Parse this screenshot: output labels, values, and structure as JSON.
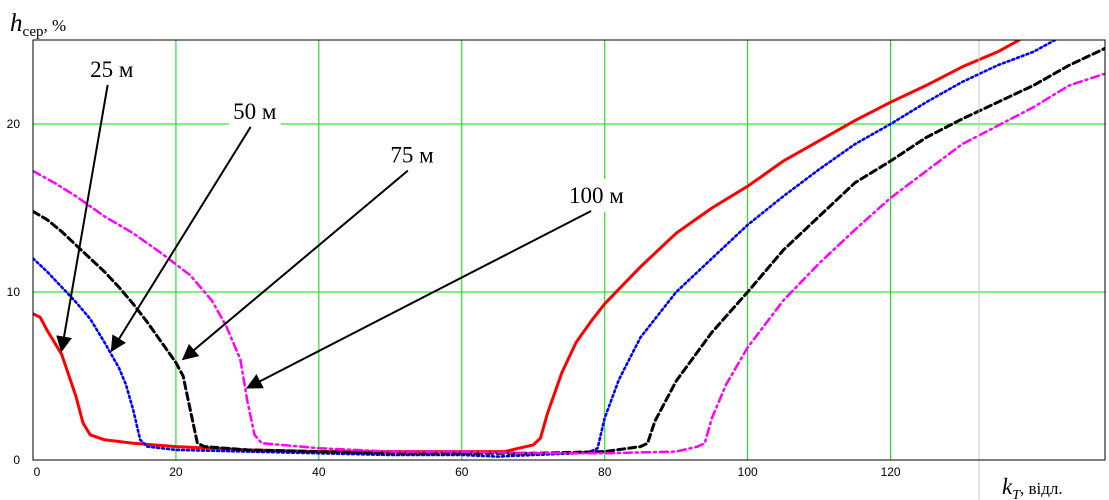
{
  "chart_data": {
    "type": "line",
    "xlabel": {
      "symbol": "k",
      "subscript": "T",
      "suffix": ", відл."
    },
    "ylabel": {
      "symbol": "h",
      "subscript": "сер",
      "suffix": ", %"
    },
    "xlim": [
      0,
      150
    ],
    "ylim": [
      0,
      25
    ],
    "x_ticks": [
      0,
      20,
      40,
      60,
      80,
      100,
      120
    ],
    "y_ticks": [
      0,
      10,
      20
    ],
    "grid": true,
    "colors": {
      "grid": "#00dd00",
      "s25": "#ff0000",
      "s50": "#0000ff",
      "s75": "#000000",
      "s100": "#ff00ff"
    },
    "series": [
      {
        "key": "s25",
        "style": "solid",
        "points": [
          [
            0,
            8.7
          ],
          [
            1,
            8.5
          ],
          [
            2,
            7.7
          ],
          [
            4,
            6.3
          ],
          [
            6,
            3.8
          ],
          [
            7,
            2.2
          ],
          [
            8,
            1.5
          ],
          [
            10,
            1.2
          ],
          [
            14,
            1.0
          ],
          [
            20,
            0.8
          ],
          [
            30,
            0.6
          ],
          [
            40,
            0.5
          ],
          [
            50,
            0.5
          ],
          [
            60,
            0.5
          ],
          [
            66,
            0.5
          ],
          [
            68,
            0.7
          ],
          [
            70,
            0.9
          ],
          [
            71,
            1.3
          ],
          [
            72,
            2.8
          ],
          [
            74,
            5.2
          ],
          [
            76,
            7.0
          ],
          [
            78,
            8.2
          ],
          [
            80,
            9.3
          ],
          [
            85,
            11.5
          ],
          [
            90,
            13.5
          ],
          [
            95,
            15.0
          ],
          [
            100,
            16.3
          ],
          [
            105,
            17.8
          ],
          [
            110,
            19.0
          ],
          [
            115,
            20.2
          ],
          [
            120,
            21.3
          ],
          [
            125,
            22.3
          ],
          [
            130,
            23.4
          ],
          [
            135,
            24.3
          ],
          [
            138,
            25.0
          ]
        ]
      },
      {
        "key": "s50",
        "style": "dotted",
        "points": [
          [
            0,
            12.0
          ],
          [
            2,
            11.2
          ],
          [
            4,
            10.3
          ],
          [
            6,
            9.4
          ],
          [
            8,
            8.4
          ],
          [
            10,
            7.0
          ],
          [
            12,
            5.5
          ],
          [
            13,
            4.5
          ],
          [
            14,
            3.0
          ],
          [
            15,
            1.2
          ],
          [
            16,
            0.8
          ],
          [
            20,
            0.6
          ],
          [
            30,
            0.5
          ],
          [
            40,
            0.4
          ],
          [
            50,
            0.3
          ],
          [
            60,
            0.3
          ],
          [
            65,
            0.2
          ],
          [
            70,
            0.3
          ],
          [
            76,
            0.4
          ],
          [
            78,
            0.5
          ],
          [
            79,
            0.7
          ],
          [
            80,
            2.5
          ],
          [
            82,
            4.8
          ],
          [
            85,
            7.3
          ],
          [
            90,
            10.0
          ],
          [
            95,
            12.0
          ],
          [
            100,
            14.0
          ],
          [
            105,
            15.7
          ],
          [
            110,
            17.3
          ],
          [
            115,
            18.8
          ],
          [
            120,
            20.0
          ],
          [
            125,
            21.3
          ],
          [
            130,
            22.5
          ],
          [
            135,
            23.5
          ],
          [
            140,
            24.3
          ],
          [
            143,
            25.0
          ]
        ]
      },
      {
        "key": "s75",
        "style": "dashed",
        "points": [
          [
            0,
            14.8
          ],
          [
            2,
            14.3
          ],
          [
            4,
            13.6
          ],
          [
            6,
            12.8
          ],
          [
            8,
            12.0
          ],
          [
            10,
            11.2
          ],
          [
            12,
            10.3
          ],
          [
            14,
            9.3
          ],
          [
            16,
            8.2
          ],
          [
            18,
            7.0
          ],
          [
            20,
            5.8
          ],
          [
            21,
            5.0
          ],
          [
            22,
            3.0
          ],
          [
            23,
            1.0
          ],
          [
            24,
            0.8
          ],
          [
            30,
            0.6
          ],
          [
            40,
            0.5
          ],
          [
            50,
            0.4
          ],
          [
            60,
            0.4
          ],
          [
            70,
            0.4
          ],
          [
            80,
            0.5
          ],
          [
            85,
            0.8
          ],
          [
            86,
            1.0
          ],
          [
            87,
            2.3
          ],
          [
            90,
            4.7
          ],
          [
            95,
            7.6
          ],
          [
            100,
            10.0
          ],
          [
            105,
            12.5
          ],
          [
            110,
            14.5
          ],
          [
            115,
            16.5
          ],
          [
            120,
            17.8
          ],
          [
            125,
            19.2
          ],
          [
            130,
            20.3
          ],
          [
            135,
            21.3
          ],
          [
            140,
            22.3
          ],
          [
            145,
            23.5
          ],
          [
            150,
            24.5
          ]
        ]
      },
      {
        "key": "s100",
        "style": "dashdot",
        "points": [
          [
            0,
            17.2
          ],
          [
            3,
            16.5
          ],
          [
            6,
            15.7
          ],
          [
            10,
            14.5
          ],
          [
            14,
            13.5
          ],
          [
            18,
            12.3
          ],
          [
            22,
            11.0
          ],
          [
            25,
            9.5
          ],
          [
            27,
            8.0
          ],
          [
            29,
            6.0
          ],
          [
            30,
            3.5
          ],
          [
            31,
            1.5
          ],
          [
            32,
            1.0
          ],
          [
            40,
            0.7
          ],
          [
            50,
            0.5
          ],
          [
            60,
            0.5
          ],
          [
            70,
            0.4
          ],
          [
            80,
            0.4
          ],
          [
            90,
            0.5
          ],
          [
            93,
            0.8
          ],
          [
            94,
            1.0
          ],
          [
            95,
            2.5
          ],
          [
            97,
            4.5
          ],
          [
            100,
            6.7
          ],
          [
            105,
            9.5
          ],
          [
            110,
            11.7
          ],
          [
            115,
            13.7
          ],
          [
            120,
            15.6
          ],
          [
            125,
            17.2
          ],
          [
            130,
            18.8
          ],
          [
            135,
            19.9
          ],
          [
            140,
            21.0
          ],
          [
            145,
            22.3
          ],
          [
            150,
            23.0
          ]
        ]
      }
    ],
    "annotations": [
      {
        "text": "25 м",
        "x_pos": 8,
        "y_pos": 22.8,
        "arrow_to": [
          4,
          6.5
        ]
      },
      {
        "text": "50 м",
        "x_pos": 28,
        "y_pos": 20.3,
        "arrow_to": [
          11,
          6.5
        ]
      },
      {
        "text": "75 м",
        "x_pos": 50,
        "y_pos": 17.7,
        "arrow_to": [
          21,
          6.0
        ]
      },
      {
        "text": "100 м",
        "x_pos": 75,
        "y_pos": 15.3,
        "arrow_to": [
          30,
          4.3
        ]
      }
    ]
  }
}
